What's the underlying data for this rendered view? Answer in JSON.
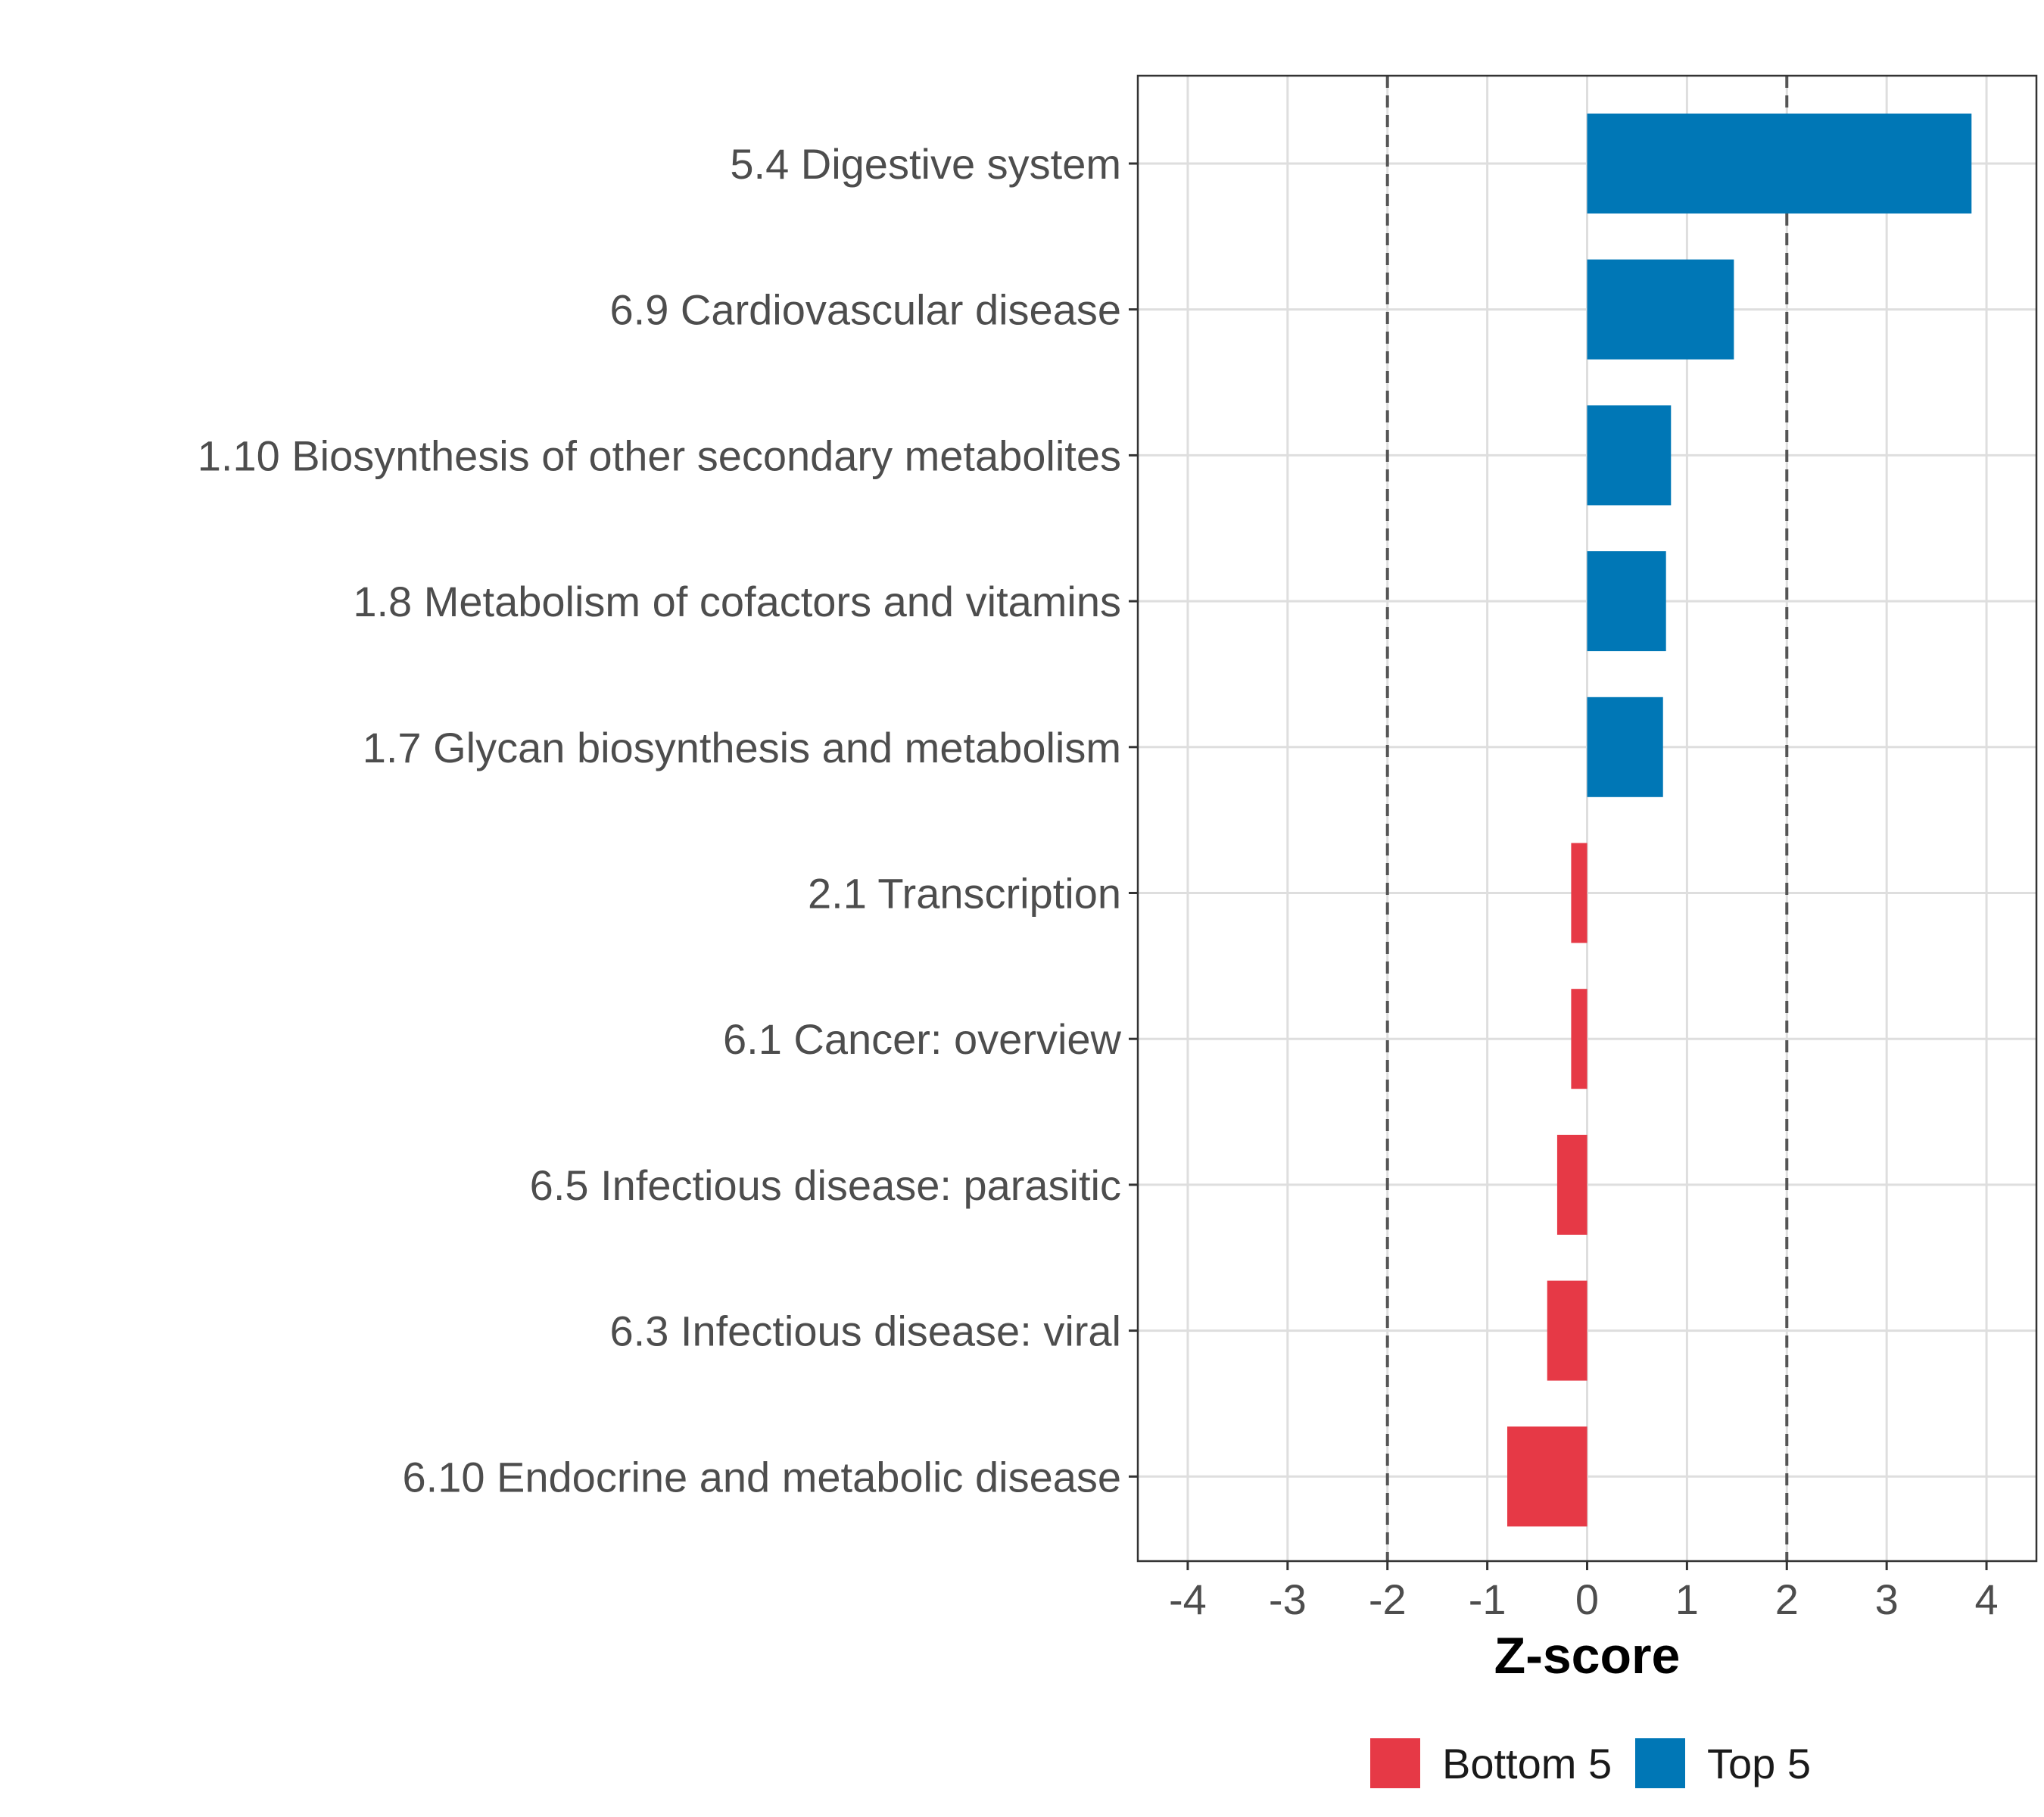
{
  "chart_data": {
    "type": "bar",
    "orientation": "horizontal",
    "title": "",
    "xlabel": "Z-score",
    "ylabel": "",
    "xlim": [
      -4.5,
      4.5
    ],
    "xticks": [
      -4,
      -3,
      -2,
      -1,
      0,
      1,
      2,
      3,
      4
    ],
    "tick_labels": [
      "-4",
      "-3",
      "-2",
      "-1",
      "0",
      "1",
      "2",
      "3",
      "4"
    ],
    "reference_lines": [
      -2,
      2
    ],
    "grid": true,
    "categories": [
      "5.4 Digestive system",
      "6.9 Cardiovascular disease",
      "1.10 Biosynthesis of other secondary metabolites",
      "1.8 Metabolism of cofactors and vitamins",
      "1.7 Glycan biosynthesis and metabolism",
      "2.1 Transcription",
      "6.1 Cancer: overview",
      "6.5 Infectious disease: parasitic",
      "6.3 Infectious disease: viral",
      "6.10 Endocrine and metabolic disease"
    ],
    "values": [
      3.85,
      1.47,
      0.84,
      0.79,
      0.76,
      -0.16,
      -0.16,
      -0.3,
      -0.4,
      -0.8
    ],
    "groups": [
      "Top 5",
      "Top 5",
      "Top 5",
      "Top 5",
      "Top 5",
      "Bottom 5",
      "Bottom 5",
      "Bottom 5",
      "Bottom 5",
      "Bottom 5"
    ],
    "legend": {
      "position": "bottom",
      "entries": [
        {
          "label": "Bottom 5",
          "color": "#E63946"
        },
        {
          "label": "Top 5",
          "color": "#0077B6"
        }
      ]
    }
  }
}
